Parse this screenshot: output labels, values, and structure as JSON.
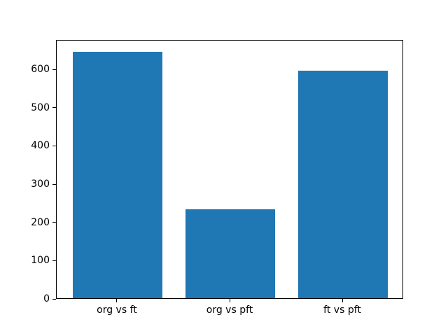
{
  "figure": {
    "background": "#ffffff"
  },
  "chart_data": {
    "type": "bar",
    "title": "",
    "xlabel": "",
    "ylabel": "",
    "categories": [
      "org vs ft",
      "org vs pft",
      "ft vs pft"
    ],
    "values": [
      645,
      233,
      595
    ],
    "bar_color": "#1f77b4",
    "ylim": [
      0,
      677.25
    ],
    "yticks": [
      0,
      100,
      200,
      300,
      400,
      500,
      600
    ],
    "xlim": [
      -0.54,
      2.54
    ],
    "bar_width": 0.8,
    "grid": false,
    "legend": null
  }
}
